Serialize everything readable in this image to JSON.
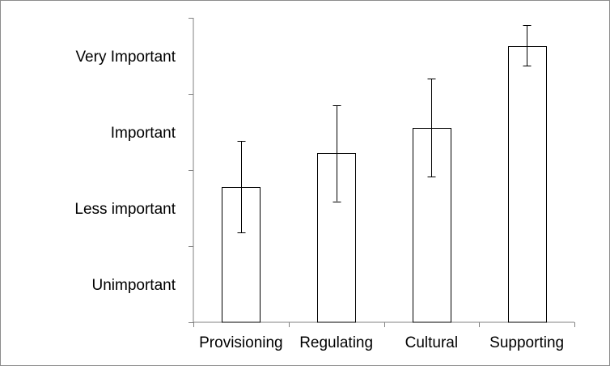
{
  "chart_data": {
    "type": "bar",
    "title": "",
    "xlabel": "",
    "ylabel": "",
    "categories": [
      "Provisioning",
      "Regulating",
      "Cultural",
      "Supporting"
    ],
    "values": [
      1.78,
      2.22,
      2.55,
      3.63
    ],
    "error_low": [
      1.18,
      1.59,
      1.91,
      3.37
    ],
    "error_high": [
      2.38,
      2.85,
      3.2,
      3.9
    ],
    "ylim": [
      0,
      4
    ],
    "y_category_labels": [
      {
        "value": 0.5,
        "label": "Unimportant"
      },
      {
        "value": 1.5,
        "label": "Less important"
      },
      {
        "value": 2.5,
        "label": "Important"
      },
      {
        "value": 3.5,
        "label": "Very Important"
      }
    ],
    "y_ticks": [
      0,
      1,
      2,
      3,
      4
    ],
    "grid": false,
    "legend": "none",
    "colors": {
      "bar_fill": "#ffffff",
      "bar_stroke": "#000000",
      "axis": "#808080",
      "error": "#000000"
    }
  }
}
